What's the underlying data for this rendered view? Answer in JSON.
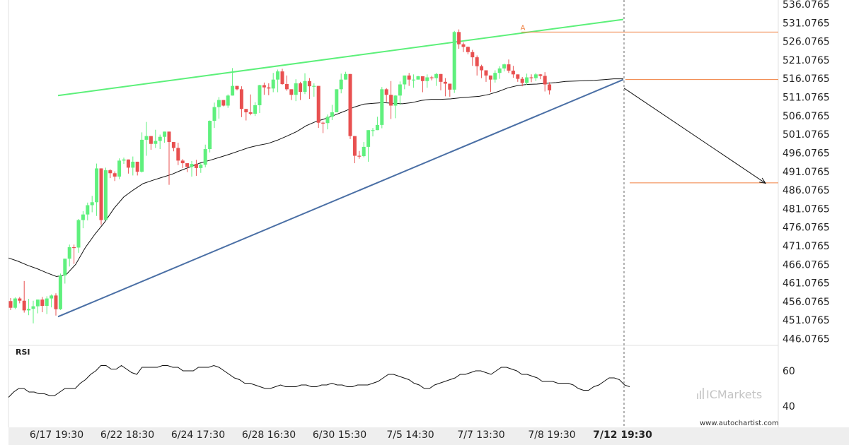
{
  "chart_data": {
    "type": "candlestick",
    "y_ticks": [
      "536.0765",
      "531.0765",
      "526.0765",
      "521.0765",
      "516.0765",
      "511.0765",
      "506.0765",
      "501.0765",
      "496.0765",
      "491.0765",
      "486.0765",
      "481.0765",
      "476.0765",
      "471.0765",
      "466.0765",
      "461.0765",
      "456.0765",
      "451.0765",
      "446.0765"
    ],
    "ylim": [
      442.5,
      537.5
    ],
    "x_ticks": [
      "6/17 19:30",
      "6/22 18:30",
      "6/24 17:30",
      "6/28 16:30",
      "6/30 15:30",
      "7/5 14:30",
      "7/7 13:30",
      "7/8 19:30",
      "7/12 19:30"
    ],
    "current_x_tick": "7/12 19:30",
    "candles_ohlc": [
      [
        456.2,
        457.0,
        453.8,
        454.4
      ],
      [
        454.4,
        457.2,
        454.0,
        456.9
      ],
      [
        456.9,
        457.3,
        455.6,
        456.3
      ],
      [
        456.3,
        461.6,
        453.1,
        453.7
      ],
      [
        453.7,
        456.8,
        452.4,
        454.1
      ],
      [
        454.1,
        456.3,
        450.2,
        454.8
      ],
      [
        454.8,
        456.5,
        452.9,
        456.6
      ],
      [
        456.6,
        457.3,
        453.2,
        454.9
      ],
      [
        454.9,
        457.5,
        452.7,
        456.9
      ],
      [
        456.9,
        458.0,
        454.5,
        457.7
      ],
      [
        457.7,
        458.3,
        452.3,
        454.0
      ],
      [
        454.0,
        463.6,
        453.8,
        463.1
      ],
      [
        463.1,
        467.4,
        460.9,
        467.6
      ],
      [
        467.6,
        471.4,
        465.5,
        470.7
      ],
      [
        470.7,
        471.4,
        466.2,
        470.6
      ],
      [
        470.6,
        478.3,
        469.2,
        478.0
      ],
      [
        478.0,
        480.4,
        475.8,
        479.5
      ],
      [
        479.5,
        482.7,
        477.9,
        482.0
      ],
      [
        482.0,
        484.5,
        480.1,
        482.8
      ],
      [
        482.8,
        493.2,
        479.1,
        491.9
      ],
      [
        491.9,
        491.8,
        476.7,
        478.0
      ],
      [
        478.0,
        492.1,
        487.8,
        491.4
      ],
      [
        491.4,
        491.7,
        489.3,
        490.6
      ],
      [
        490.6,
        491.1,
        488.5,
        489.7
      ],
      [
        489.7,
        494.6,
        489.0,
        494.0
      ],
      [
        494.0,
        494.8,
        493.1,
        494.3
      ],
      [
        494.3,
        494.0,
        490.5,
        492.1
      ],
      [
        492.1,
        495.1,
        490.0,
        493.7
      ],
      [
        493.7,
        493.3,
        490.0,
        491.0
      ],
      [
        491.0,
        501.6,
        490.8,
        499.6
      ],
      [
        499.6,
        504.4,
        495.3,
        500.6
      ],
      [
        500.6,
        500.6,
        496.9,
        498.5
      ],
      [
        498.5,
        502.3,
        497.4,
        499.3
      ],
      [
        499.3,
        501.0,
        497.1,
        500.4
      ],
      [
        500.4,
        501.7,
        498.8,
        501.8
      ],
      [
        501.8,
        500.3,
        487.5,
        499.0
      ],
      [
        499.0,
        498.9,
        496.5,
        497.4
      ],
      [
        497.4,
        498.8,
        492.8,
        494.0
      ],
      [
        494.0,
        494.4,
        492.0,
        493.3
      ],
      [
        493.3,
        493.1,
        490.9,
        492.3
      ],
      [
        492.3,
        493.9,
        489.7,
        493.1
      ],
      [
        493.1,
        494.2,
        489.9,
        492.0
      ],
      [
        492.0,
        493.3,
        490.7,
        492.9
      ],
      [
        492.9,
        498.3,
        492.2,
        497.1
      ],
      [
        497.1,
        504.8,
        496.2,
        504.7
      ],
      [
        504.7,
        509.6,
        502.8,
        508.4
      ],
      [
        508.4,
        511.1,
        505.3,
        510.3
      ],
      [
        510.3,
        510.3,
        508.6,
        508.8
      ],
      [
        508.8,
        511.8,
        508.2,
        511.5
      ],
      [
        511.5,
        518.9,
        512.2,
        514.1
      ],
      [
        514.1,
        513.6,
        512.9,
        513.2
      ],
      [
        513.2,
        514.0,
        505.7,
        507.9
      ],
      [
        507.9,
        507.8,
        504.8,
        507.0
      ],
      [
        507.0,
        511.8,
        506.2,
        506.6
      ],
      [
        506.6,
        509.7,
        506.0,
        508.9
      ],
      [
        508.9,
        514.4,
        506.8,
        514.3
      ],
      [
        514.3,
        515.0,
        511.7,
        513.7
      ],
      [
        513.7,
        514.8,
        511.6,
        513.4
      ],
      [
        513.4,
        517.6,
        512.4,
        515.8
      ],
      [
        515.8,
        518.5,
        512.4,
        518.0
      ],
      [
        518.0,
        518.7,
        514.4,
        514.6
      ],
      [
        514.6,
        516.9,
        512.8,
        513.2
      ],
      [
        513.2,
        513.1,
        510.3,
        511.7
      ],
      [
        511.7,
        515.9,
        510.0,
        514.8
      ],
      [
        514.8,
        515.2,
        510.3,
        512.5
      ],
      [
        512.5,
        517.5,
        511.9,
        515.4
      ],
      [
        515.4,
        516.2,
        510.6,
        514.0
      ],
      [
        514.0,
        514.8,
        511.2,
        514.1
      ],
      [
        514.1,
        510.5,
        502.8,
        504.2
      ],
      [
        504.2,
        504.5,
        501.4,
        504.1
      ],
      [
        504.1,
        506.4,
        502.4,
        505.8
      ],
      [
        505.8,
        509.0,
        504.9,
        507.0
      ],
      [
        507.0,
        509.9,
        508.8,
        513.2
      ],
      [
        513.2,
        517.4,
        512.1,
        515.8
      ],
      [
        515.8,
        517.9,
        516.8,
        517.3
      ],
      [
        517.3,
        510.4,
        499.8,
        500.6
      ],
      [
        500.6,
        499.4,
        493.3,
        495.3
      ],
      [
        495.3,
        496.6,
        494.5,
        495.2
      ],
      [
        495.2,
        499.0,
        494.9,
        497.7
      ],
      [
        497.7,
        502.1,
        493.7,
        502.2
      ],
      [
        502.2,
        502.8,
        500.5,
        502.2
      ],
      [
        502.2,
        505.8,
        502.6,
        503.6
      ],
      [
        503.6,
        513.8,
        502.7,
        513.2
      ],
      [
        513.2,
        513.5,
        509.8,
        511.7
      ],
      [
        511.7,
        515.4,
        505.2,
        508.8
      ],
      [
        508.8,
        511.6,
        505.4,
        511.5
      ],
      [
        511.5,
        515.3,
        508.9,
        514.5
      ],
      [
        514.5,
        516.9,
        513.2,
        516.9
      ],
      [
        516.9,
        517.6,
        514.1,
        515.8
      ],
      [
        515.8,
        517.2,
        513.6,
        515.8
      ],
      [
        515.8,
        516.8,
        515.8,
        516.7
      ],
      [
        516.7,
        516.1,
        512.4,
        515.4
      ],
      [
        515.4,
        517.2,
        513.6,
        516.4
      ],
      [
        516.4,
        516.8,
        515.6,
        516.2
      ],
      [
        516.2,
        517.6,
        514.1,
        517.3
      ],
      [
        517.3,
        516.1,
        512.9,
        515.2
      ],
      [
        515.2,
        516.2,
        511.3,
        514.7
      ],
      [
        514.7,
        512.1,
        511.2,
        513.1
      ],
      [
        513.1,
        528.9,
        512.2,
        528.6
      ],
      [
        528.6,
        529.3,
        524.1,
        525.3
      ],
      [
        525.3,
        525.8,
        523.2,
        524.6
      ],
      [
        524.6,
        524.7,
        522.6,
        523.2
      ],
      [
        523.2,
        523.8,
        519.5,
        521.8
      ],
      [
        521.8,
        522.3,
        516.9,
        519.4
      ],
      [
        519.4,
        519.8,
        516.2,
        518.3
      ],
      [
        518.3,
        518.0,
        515.2,
        516.9
      ],
      [
        516.9,
        516.3,
        512.5,
        515.8
      ],
      [
        515.8,
        518.3,
        515.0,
        517.6
      ],
      [
        517.6,
        519.4,
        516.0,
        518.8
      ],
      [
        518.8,
        520.1,
        518.0,
        519.9
      ],
      [
        519.9,
        521.2,
        517.6,
        518.2
      ],
      [
        518.2,
        519.5,
        516.3,
        517.2
      ],
      [
        517.2,
        516.7,
        515.2,
        516.0
      ],
      [
        516.0,
        516.5,
        514.0,
        514.9
      ],
      [
        514.9,
        517.4,
        514.4,
        516.4
      ],
      [
        516.4,
        517.2,
        515.1,
        516.2
      ],
      [
        516.2,
        517.6,
        515.4,
        517.2
      ],
      [
        517.2,
        517.3,
        515.9,
        516.8
      ],
      [
        516.8,
        517.8,
        512.6,
        514.5
      ],
      [
        514.5,
        515.1,
        511.8,
        512.9
      ]
    ],
    "moving_average": [
      467.8,
      466.9,
      465.8,
      464.9,
      463.8,
      462.8,
      463.3,
      466.1,
      470.6,
      474.2,
      477.4,
      481.2,
      484.2,
      486.1,
      487.8,
      488.7,
      489.5,
      490.3,
      491.4,
      492.4,
      493.4,
      494.1,
      494.9,
      495.7,
      496.6,
      497.5,
      498.1,
      498.6,
      499.5,
      500.6,
      501.8,
      503.4,
      504.5,
      505.3,
      506.3,
      507.3,
      508.4,
      509.2,
      509.4,
      509.6,
      509.4,
      509.3,
      509.6,
      510.2,
      510.5,
      510.5,
      510.6,
      510.9,
      511.1,
      511.3,
      511.8,
      512.6,
      513.6,
      514.2,
      514.5,
      514.6,
      514.8,
      515.0,
      515.3,
      515.4,
      515.5,
      515.6,
      515.8,
      516.0,
      516.0
    ],
    "rising_wedge": {
      "upper_line": {
        "from": [
          "6/17 19:30",
          511.5
        ],
        "to": [
          "7/12 19:30",
          532.0
        ]
      },
      "lower_line": {
        "from": [
          "6/17 19:30",
          452.0
        ],
        "to": [
          "7/12 19:30",
          515.8
        ]
      }
    },
    "horizontal_levels": [
      528.6,
      515.8,
      488.0
    ],
    "projection": {
      "from": 513.5,
      "to": 487.9
    },
    "peak_marker": "A",
    "rsi": {
      "title": "RSI",
      "ticks": [
        "60",
        "40"
      ],
      "ylim": [
        30,
        72
      ],
      "values": [
        45,
        48,
        50,
        50,
        48,
        48,
        47,
        47,
        46,
        46,
        48,
        50,
        50,
        50,
        53,
        55,
        58,
        60,
        63,
        63,
        61,
        61,
        63,
        61,
        59,
        58,
        62,
        62,
        62,
        62,
        63,
        63,
        62,
        62,
        60,
        60,
        60,
        62,
        62,
        62,
        63,
        62,
        60,
        58,
        56,
        55,
        53,
        53,
        52,
        51,
        50,
        50,
        51,
        52,
        51,
        51,
        51,
        52,
        52,
        51,
        51,
        52,
        52,
        53,
        52,
        52,
        51,
        51,
        52,
        52,
        52,
        53,
        54,
        56,
        58,
        58,
        57,
        56,
        55,
        53,
        52,
        50,
        50,
        52,
        53,
        54,
        55,
        56,
        58,
        58,
        59,
        60,
        60,
        59,
        58,
        60,
        62,
        62,
        61,
        60,
        58,
        58,
        57,
        56,
        54,
        54,
        54,
        53,
        53,
        53,
        52,
        50,
        49,
        49,
        51,
        52,
        54,
        56,
        56,
        55,
        52,
        51
      ]
    }
  },
  "branding": {
    "logo_text": "ICMarkets",
    "site": "www.autochartist.com"
  }
}
